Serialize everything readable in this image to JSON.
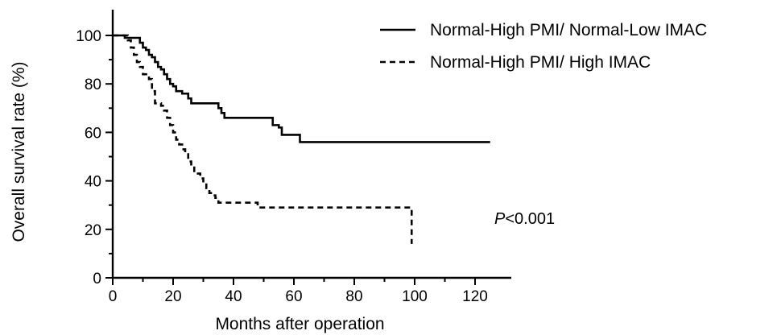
{
  "chart_data": {
    "type": "line",
    "step": true,
    "title": "",
    "xlabel": "Months after operation",
    "ylabel": "Overall survival rate (%)",
    "xlim": [
      0,
      125
    ],
    "ylim": [
      0,
      110
    ],
    "xticks": [
      0,
      20,
      40,
      60,
      80,
      100,
      120
    ],
    "yticks": [
      0,
      20,
      40,
      60,
      80,
      100
    ],
    "grid": false,
    "legend_position": "top-right",
    "annotation": {
      "italic": "P",
      "rest": "<0.001"
    },
    "series": [
      {
        "name": "Normal-High PMI/ Normal-Low IMAC",
        "style": "solid",
        "color": "#000000",
        "points": [
          [
            0,
            100
          ],
          [
            3,
            100
          ],
          [
            4,
            99
          ],
          [
            8,
            99
          ],
          [
            9,
            97
          ],
          [
            10,
            95
          ],
          [
            11,
            94
          ],
          [
            12,
            92
          ],
          [
            13,
            91
          ],
          [
            14,
            89
          ],
          [
            15,
            87
          ],
          [
            16,
            86
          ],
          [
            17,
            84
          ],
          [
            18,
            82
          ],
          [
            19,
            80
          ],
          [
            20,
            79
          ],
          [
            21,
            77
          ],
          [
            23,
            76
          ],
          [
            25,
            74
          ],
          [
            26,
            72
          ],
          [
            34,
            72
          ],
          [
            35,
            70
          ],
          [
            36,
            68
          ],
          [
            37,
            66
          ],
          [
            52,
            66
          ],
          [
            53,
            63
          ],
          [
            55,
            62
          ],
          [
            56,
            59
          ],
          [
            61,
            59
          ],
          [
            62,
            56
          ],
          [
            125,
            56
          ]
        ]
      },
      {
        "name": "Normal-High PMI/ High IMAC",
        "style": "dashed",
        "color": "#000000",
        "points": [
          [
            0,
            100
          ],
          [
            4,
            100
          ],
          [
            5,
            98
          ],
          [
            6,
            95
          ],
          [
            7,
            92
          ],
          [
            8,
            89
          ],
          [
            9,
            87
          ],
          [
            10,
            84
          ],
          [
            12,
            82
          ],
          [
            13,
            77
          ],
          [
            14,
            72
          ],
          [
            16,
            71
          ],
          [
            17,
            69
          ],
          [
            18,
            66
          ],
          [
            19,
            63
          ],
          [
            20,
            60
          ],
          [
            21,
            57
          ],
          [
            22,
            55
          ],
          [
            23,
            53
          ],
          [
            24,
            51
          ],
          [
            25,
            48
          ],
          [
            26,
            46
          ],
          [
            27,
            43
          ],
          [
            29,
            41
          ],
          [
            30,
            39
          ],
          [
            31,
            37
          ],
          [
            32,
            35
          ],
          [
            33,
            34
          ],
          [
            34,
            33
          ],
          [
            35,
            31
          ],
          [
            47,
            31
          ],
          [
            48,
            29
          ],
          [
            98,
            29
          ],
          [
            99,
            14
          ]
        ]
      }
    ]
  }
}
